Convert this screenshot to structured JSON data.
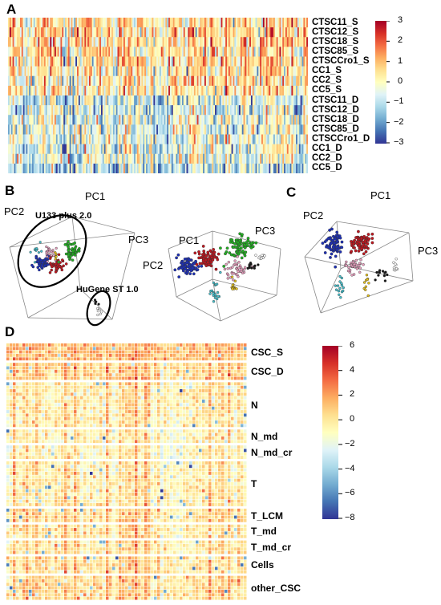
{
  "panels": {
    "a": {
      "letter": "A"
    },
    "b": {
      "letter": "B"
    },
    "c": {
      "letter": "C"
    },
    "d": {
      "letter": "D"
    }
  },
  "chart_data": [
    {
      "type": "heatmap",
      "panel": "A",
      "rows": [
        "CTSC11_S",
        "CTSC12_S",
        "CTSC18_S",
        "CTSC85_S",
        "CTSCCro1_S",
        "CC1_S",
        "CC2_S",
        "CC5_S",
        "CTSC11_D",
        "CTSC12_D",
        "CTSC18_D",
        "CTSC85_D",
        "CTSCCro1_D",
        "CC1_D",
        "CC2_D",
        "CC5_D"
      ],
      "row_mean": [
        0.5,
        0.6,
        0.5,
        0.5,
        0.4,
        0.3,
        0.2,
        0.2,
        -0.7,
        -0.7,
        -0.5,
        -0.5,
        -0.5,
        -0.5,
        -0.6,
        -1.0
      ],
      "columns_shown": 200,
      "colorbar": {
        "min": -3,
        "max": 3,
        "ticks": [
          3,
          2,
          1,
          0,
          -1,
          -2,
          -3
        ]
      },
      "colormap": [
        "#313695",
        "#4575b4",
        "#74add1",
        "#abd9e9",
        "#e0f3f8",
        "#ffffbf",
        "#fee090",
        "#fdae61",
        "#f46d43",
        "#d73027",
        "#a50026"
      ]
    },
    {
      "type": "scatter",
      "panel": "B",
      "subplots": [
        {
          "axes": [
            "PC1",
            "PC2",
            "PC3"
          ],
          "annotations": [
            "U133 plus 2.0",
            "HuGene ST 1.0"
          ]
        },
        {
          "axes": [
            "PC1",
            "PC2",
            "PC3"
          ]
        }
      ],
      "groups": [
        {
          "color": "#1c2fb8",
          "count": 150
        },
        {
          "color": "#c0161e",
          "count": 150
        },
        {
          "color": "#22b022",
          "count": 150
        },
        {
          "color": "#e8a0bf",
          "count": 40
        },
        {
          "color": "#45c0cc",
          "count": 20
        },
        {
          "color": "#e7c21a",
          "count": 12
        },
        {
          "color": "#151515",
          "count": 12
        },
        {
          "color": "#ffffff",
          "count": 12
        }
      ]
    },
    {
      "type": "scatter",
      "panel": "C",
      "axes": [
        "PC1",
        "PC2",
        "PC3"
      ],
      "groups": [
        {
          "color": "#1c2fb8",
          "count": 150
        },
        {
          "color": "#c0161e",
          "count": 150
        },
        {
          "color": "#e8a0bf",
          "count": 35
        },
        {
          "color": "#45c0cc",
          "count": 15
        },
        {
          "color": "#e7c21a",
          "count": 10
        },
        {
          "color": "#151515",
          "count": 12
        },
        {
          "color": "#ffffff",
          "count": 10
        }
      ]
    },
    {
      "type": "heatmap",
      "panel": "D",
      "groups": [
        {
          "label": "CSC_S",
          "nrows": 5,
          "mean": 1.5
        },
        {
          "label": "CSC_D",
          "nrows": 5,
          "mean": 1.0
        },
        {
          "label": "N",
          "nrows": 13,
          "mean": 0.0
        },
        {
          "label": "N_md",
          "nrows": 4,
          "mean": -0.3
        },
        {
          "label": "N_md_cr",
          "nrows": 4,
          "mean": -0.5
        },
        {
          "label": "T",
          "nrows": 13,
          "mean": 0.0
        },
        {
          "label": "T_LCM",
          "nrows": 4,
          "mean": 0.5
        },
        {
          "label": "T_md",
          "nrows": 4,
          "mean": 0.3
        },
        {
          "label": "T_md_cr",
          "nrows": 4,
          "mean": 0.2
        },
        {
          "label": "Cells",
          "nrows": 5,
          "mean": 0.4
        },
        {
          "label": "other_CSC",
          "nrows": 7,
          "mean": 0.7
        }
      ],
      "columns_shown": 75,
      "colorbar": {
        "min": -8,
        "max": 6,
        "ticks": [
          6,
          4,
          2,
          0,
          -2,
          -4,
          -6,
          -8
        ]
      },
      "colormap": [
        "#313695",
        "#4575b4",
        "#74add1",
        "#abd9e9",
        "#e0f3f8",
        "#ffffbf",
        "#fee090",
        "#fdae61",
        "#f46d43",
        "#d73027",
        "#a50026"
      ]
    }
  ]
}
